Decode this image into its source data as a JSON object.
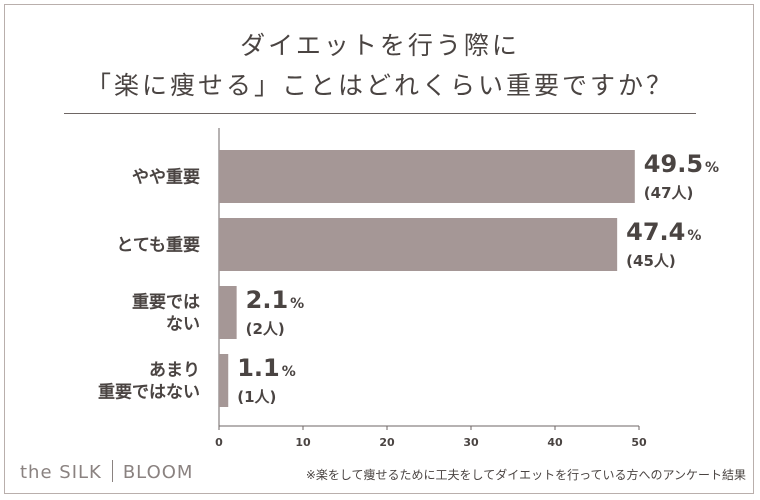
{
  "title": {
    "line1": "ダイエットを行う際に",
    "line2": "「楽に痩せる」ことはどれくらい重要ですか？"
  },
  "chart_data": {
    "type": "bar",
    "orientation": "horizontal",
    "categories": [
      [
        "やや重要"
      ],
      [
        "とても重要"
      ],
      [
        "重要では",
        "ない"
      ],
      [
        "あまり",
        "重要ではない"
      ]
    ],
    "values": [
      49.5,
      47.4,
      2.1,
      1.1
    ],
    "value_labels": [
      "49.5",
      "47.4",
      "2.1",
      "1.1"
    ],
    "unit": "%",
    "counts": [
      "(47人)",
      "(45人)",
      "(2人)",
      "(1人)"
    ],
    "xlim": [
      0,
      50
    ],
    "xticks": [
      0,
      10,
      20,
      30,
      40,
      50
    ],
    "bar_color": "#a59796",
    "grid": false
  },
  "footer": {
    "brand_left": "the SILK",
    "brand_right": "BLOOM",
    "note": "※楽をして痩せるために工夫をしてダイエットを行っている方へのアンケート結果"
  }
}
